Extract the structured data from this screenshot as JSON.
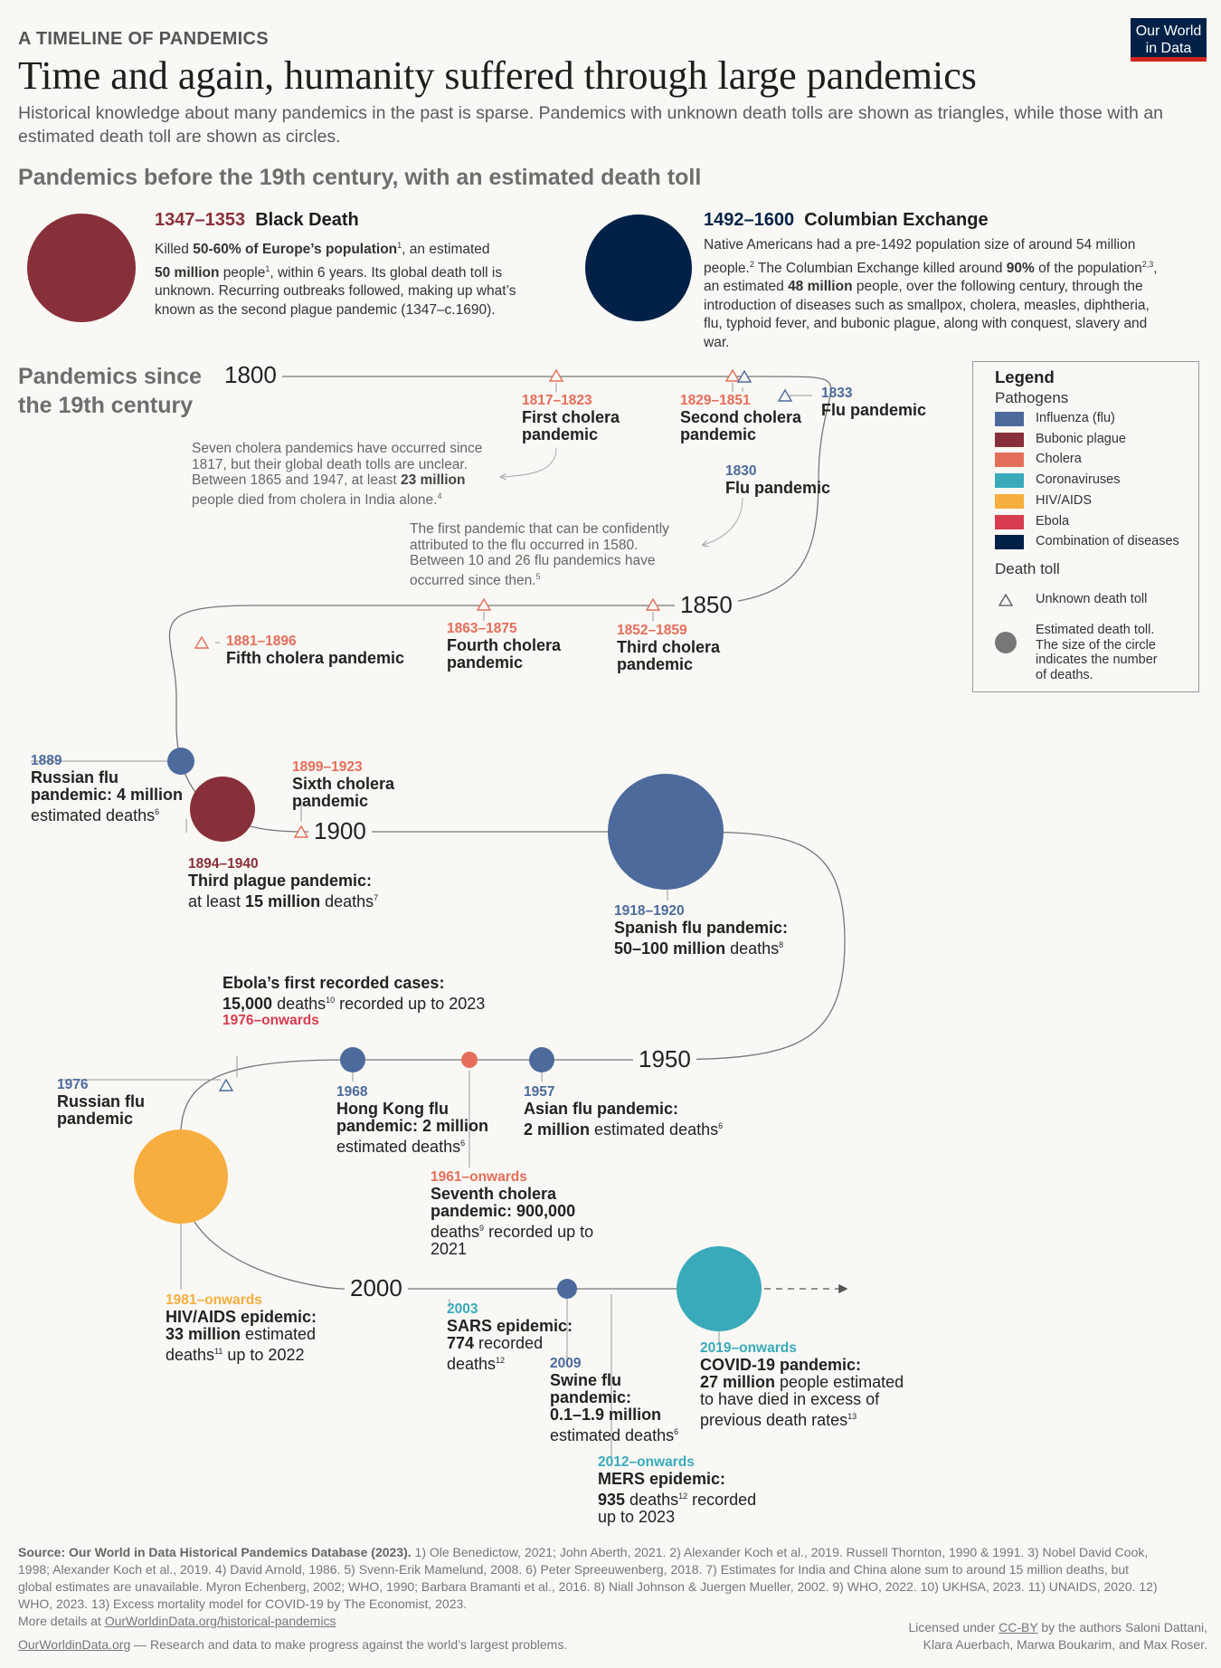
{
  "header": {
    "kicker": "A TIMELINE OF PANDEMICS",
    "title": "Time and again, humanity suffered through large pandemics",
    "subtitle": "Historical knowledge about many pandemics in the past is sparse. Pandemics with unknown death tolls are shown as triangles, while those with an estimated death toll are shown as circles.",
    "logo_line1": "Our World",
    "logo_line2": "in Data"
  },
  "section_before": "Pandemics before the 19th century, with an estimated death toll",
  "section_since_line1": "Pandemics since",
  "section_since_line2": "the 19th century",
  "black_death": {
    "years": "1347–1353",
    "name": "Black Death",
    "l1a": "Killed ",
    "l1b": "50-60% of Europe’s population",
    "l1c": ", an estimated",
    "l2a": "50 million",
    "l2b": " people",
    "l2c": ", within 6 years. Its global death toll is",
    "l3": "unknown. Recurring outbreaks followed, making up what’s",
    "l4": "known as the second plague pandemic (1347–c.1690)."
  },
  "columbian": {
    "years": "1492–1600",
    "name": "Columbian Exchange",
    "l1": "Native Americans had a pre-1492 population size of around 54 million",
    "l2a": "people.",
    "l2b": " The Columbian Exchange killed around ",
    "l2c": "90%",
    "l2d": " of the population",
    "l2e": ",",
    "l3a": "an estimated ",
    "l3b": "48 million",
    "l3c": " people, over the following century, through the",
    "l4": "introduction of diseases such as smallpox, cholera, measles, diphtheria,",
    "l5": "flu, typhoid fever, and bubonic plague, along with conquest, slavery and",
    "l6": "war."
  },
  "decades": {
    "d1800": "1800",
    "d1850": "1850",
    "d1900": "1900",
    "d1950": "1950",
    "d2000": "2000"
  },
  "events": {
    "c1817": {
      "years": "1817–1823",
      "l1": "First cholera",
      "l2": "pandemic"
    },
    "c1829": {
      "years": "1829–1851",
      "l1": "Second cholera",
      "l2": "pandemic"
    },
    "f1833": {
      "years": "1833",
      "l1": "Flu pandemic"
    },
    "f1830": {
      "years": "1830",
      "l1": "Flu pandemic"
    },
    "c1852": {
      "years": "1852–1859",
      "l1": "Third cholera",
      "l2": "pandemic"
    },
    "c1863": {
      "years": "1863–1875",
      "l1": "Fourth cholera",
      "l2": "pandemic"
    },
    "c1881": {
      "years": "1881–1896",
      "l1": "Fifth cholera pandemic"
    },
    "f1889": {
      "years": "1889",
      "l1": "Russian flu",
      "l2a": "pandemic: ",
      "l2b": "4 million",
      "l3": "estimated deaths",
      "sup": "6"
    },
    "p1894": {
      "years": "1894–1940",
      "l1": "Third plague pandemic:",
      "l2a": "at least ",
      "l2b": "15 million",
      "l2c": " deaths",
      "sup": "7"
    },
    "c1899": {
      "years": "1899–1923",
      "l1": "Sixth cholera",
      "l2": "pandemic"
    },
    "f1918": {
      "years": "1918–1920",
      "l1": "Spanish flu pandemic:",
      "l2a": "50–100 million",
      "l2b": " deaths",
      "sup": "8"
    },
    "f1957": {
      "years": "1957",
      "l1": "Asian flu pandemic:",
      "l2a": "2 million",
      "l2b": " estimated deaths",
      "sup": "6"
    },
    "c1961": {
      "years": "1961–onwards",
      "l1": "Seventh cholera",
      "l2": "pandemic: 900,000",
      "l3a": "deaths",
      "l3b": " recorded up to",
      "l4": "2021",
      "sup": "9"
    },
    "f1968": {
      "years": "1968",
      "l1": "Hong Kong flu",
      "l2": "pandemic: 2 million",
      "l3": "estimated deaths",
      "sup": "6"
    },
    "e1976": {
      "years": "1976–onwards",
      "l1": "Ebola’s first recorded cases:",
      "l2a": "15,000",
      "l2b": " deaths",
      "l2c": " recorded up to 2023",
      "sup": "10"
    },
    "f1976": {
      "years": "1976",
      "l1": "Russian flu",
      "l2": "pandemic"
    },
    "h1981": {
      "years": "1981–onwards",
      "l1": "HIV/AIDS epidemic:",
      "l2a": "33 million",
      "l2b": " estimated",
      "l3a": "deaths",
      "l3b": " up to 2022",
      "sup": "11"
    },
    "s2003": {
      "years": "2003",
      "l1": "SARS epidemic:",
      "l2": "774",
      "l2b": " recorded",
      "l3": "deaths",
      "sup": "12"
    },
    "f2009": {
      "years": "2009",
      "l1": "Swine flu",
      "l2": "pandemic:",
      "l3": "0.1–1.9 million",
      "l4": "estimated deaths",
      "sup": "6"
    },
    "m2012": {
      "years": "2012–onwards",
      "l1": "MERS epidemic:",
      "l2a": "935",
      "l2b": " deaths",
      "l2c": " recorded",
      "l3": "up to 2023",
      "sup": "12"
    },
    "c2019": {
      "years": "2019–onwards",
      "l1": "COVID-19 pandemic:",
      "l2a": "27 million",
      "l2b": " people estimated",
      "l3": "to have died in excess of",
      "l4": "previous death rates",
      "sup": "13"
    }
  },
  "notes": {
    "cholera": {
      "l1": "Seven cholera pandemics have occurred since",
      "l2": "1817, but their global death tolls are unclear.",
      "l3a": "Between 1865 and 1947, at least ",
      "l3b": "23 million",
      "l4": "people died from cholera in India alone.",
      "sup": "4"
    },
    "flu": {
      "l1": "The first pandemic that can be confidently",
      "l2": "attributed to the flu occurred in 1580.",
      "l3": "Between 10 and 26 flu pandemics have",
      "l4": "occurred since then.",
      "sup": "5"
    }
  },
  "legend": {
    "title": "Legend",
    "pathogens_title": "Pathogens",
    "items": [
      {
        "label": "Influenza (flu)",
        "color": "#4c6a9c"
      },
      {
        "label": "Bubonic plague",
        "color": "#883039"
      },
      {
        "label": "Cholera",
        "color": "#e56e5a"
      },
      {
        "label": "Coronaviruses",
        "color": "#38aaba"
      },
      {
        "label": "HIV/AIDS",
        "color": "#f7ae3f"
      },
      {
        "label": "Ebola",
        "color": "#d73c50"
      },
      {
        "label": "Combination of diseases",
        "color": "#002147"
      }
    ],
    "death_toll_title": "Death toll",
    "unknown": "Unknown death toll",
    "estimated_l1": "Estimated death toll.",
    "estimated_l2": "The size of the circle",
    "estimated_l3": "indicates the number",
    "estimated_l4": "of deaths."
  },
  "footer": {
    "l1a": "Source: Our World in Data Historical Pandemics Database (2023).",
    "l1b": " 1) Ole Benedictow, 2021; John Aberth, 2021. 2) Alexander Koch et al., 2019. Russell Thornton, 1990 & 1991. 3) Nobel David Cook,",
    "l2": "1998; Alexander Koch et al., 2019. 4) David Arnold, 1986. 5) Svenn-Erik Mamelund, 2008. 6) Peter Spreeuwenberg, 2018. 7) Estimates for India and China alone sum to around 15 million deaths, but",
    "l3": "global estimates are unavailable. Myron Echenberg, 2002; WHO, 1990; Barbara Bramanti et al., 2016. 8) Niall Johnson & Juergen Mueller, 2002. 9) WHO, 2022. 10) UKHSA, 2023. 11) UNAIDS, 2020. 12)",
    "l4": "WHO, 2023. 13) Excess mortality model for COVID-19 by The Economist, 2023.",
    "l5a": "More details at ",
    "l5b": "OurWorldinData.org/historical-pandemics",
    "l6a": "OurWorldinData.org",
    "l6b": " — Research and data to make progress against the world’s largest problems.",
    "r1a": "Licensed under ",
    "r1b": "CC-BY",
    "r1c": " by the authors Saloni Dattani,",
    "r2": "Klara Auerbach, Marwa Boukarim, and Max Roser."
  },
  "colors": {
    "flu": "#4c6a9c",
    "plague": "#883039",
    "cholera": "#e56e5a",
    "corona": "#38aaba",
    "hiv": "#f7ae3f",
    "ebola": "#d73c50",
    "combo": "#002147"
  }
}
